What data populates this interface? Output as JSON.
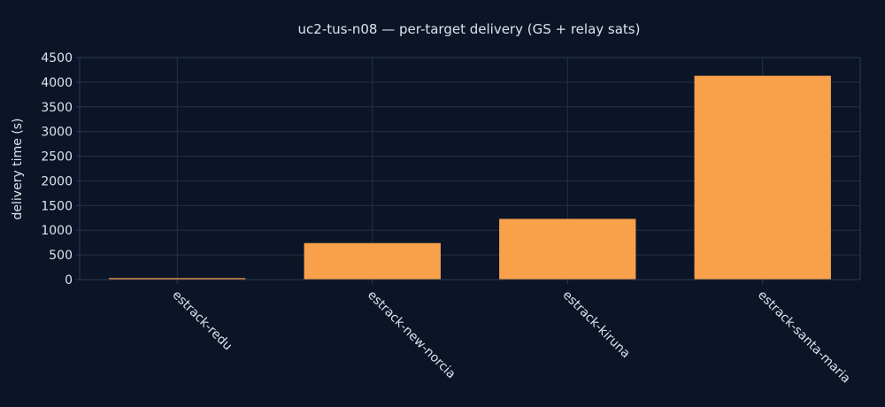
{
  "chart_data": {
    "type": "bar",
    "title": "uc2-tus-n08 — per-target delivery (GS + relay sats)",
    "xlabel": "",
    "ylabel": "delivery time (s)",
    "categories": [
      "estrack-redu",
      "estrack-new-norcia",
      "estrack-kiruna",
      "estrack-santa-maria"
    ],
    "values": [
      30,
      740,
      1230,
      4130
    ],
    "ylim": [
      0,
      4500
    ],
    "yticks": [
      0,
      500,
      1000,
      1500,
      2000,
      2500,
      3000,
      3500,
      4000,
      4500
    ],
    "grid": true,
    "legend": "none",
    "bar_color": "#f8a04a",
    "background_color": "#0b1527"
  }
}
